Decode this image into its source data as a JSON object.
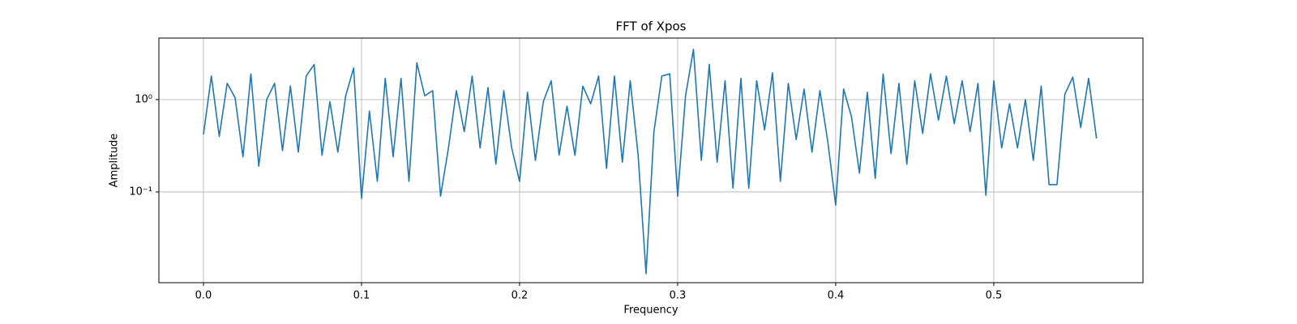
{
  "chart_data": {
    "type": "line",
    "title": "FFT of Xpos",
    "x_label": "Frequency",
    "y_label": "Amplitude",
    "color": "#1f77b4",
    "yscale": "log",
    "grid": true,
    "xlim": [
      -0.0282,
      0.5944
    ],
    "ylim": [
      0.0104,
      4.64
    ],
    "xticks": [
      {
        "value": 0,
        "label": "0.0"
      },
      0.1,
      0.2,
      0.3,
      0.4,
      0.5
    ],
    "yticks": [
      {
        "value": 0.1,
        "label": "10⁻¹"
      },
      {
        "value": 1,
        "label": "10⁰"
      }
    ],
    "x": [
      0,
      0.005,
      0.01,
      0.015,
      0.02,
      0.025,
      0.03,
      0.035,
      0.04,
      0.045,
      0.05,
      0.055,
      0.06,
      0.065,
      0.07,
      0.075,
      0.08,
      0.085,
      0.09,
      0.095,
      0.1,
      0.105,
      0.11,
      0.115,
      0.12,
      0.125,
      0.13,
      0.135,
      0.14,
      0.145,
      0.15,
      0.155,
      0.16,
      0.165,
      0.17,
      0.175,
      0.18,
      0.185,
      0.19,
      0.195,
      0.2,
      0.205,
      0.21,
      0.215,
      0.22,
      0.225,
      0.23,
      0.235,
      0.24,
      0.245,
      0.25,
      0.255,
      0.26,
      0.265,
      0.27,
      0.275,
      0.28,
      0.285,
      0.29,
      0.295,
      0.3,
      0.305,
      0.31,
      0.315,
      0.32,
      0.325,
      0.33,
      0.335,
      0.34,
      0.345,
      0.35,
      0.355,
      0.36,
      0.365,
      0.37,
      0.375,
      0.38,
      0.385,
      0.39,
      0.395,
      0.4,
      0.405,
      0.41,
      0.415,
      0.42,
      0.425,
      0.43,
      0.435,
      0.44,
      0.445,
      0.45,
      0.455,
      0.46,
      0.465,
      0.47,
      0.475,
      0.48,
      0.485,
      0.49,
      0.495,
      0.5,
      0.505,
      0.51,
      0.515,
      0.52,
      0.525,
      0.53,
      0.535,
      0.54,
      0.545,
      0.55,
      0.555,
      0.56,
      0.565
    ],
    "values": [
      0.42,
      1.8,
      0.4,
      1.5,
      1.05,
      0.24,
      1.9,
      0.19,
      1.0,
      1.5,
      0.28,
      1.4,
      0.27,
      1.8,
      2.4,
      0.25,
      0.95,
      0.27,
      1.1,
      2.2,
      0.085,
      0.75,
      0.13,
      1.7,
      0.24,
      1.7,
      0.13,
      2.5,
      1.1,
      1.25,
      0.09,
      0.3,
      1.25,
      0.45,
      1.8,
      0.3,
      1.35,
      0.2,
      1.25,
      0.3,
      0.13,
      1.2,
      0.22,
      0.95,
      1.6,
      0.25,
      0.85,
      0.25,
      1.4,
      0.9,
      1.8,
      0.18,
      1.8,
      0.21,
      1.6,
      0.25,
      0.013,
      0.45,
      1.8,
      1.9,
      0.09,
      1.1,
      3.5,
      0.22,
      2.4,
      0.21,
      1.6,
      0.11,
      1.7,
      0.11,
      1.6,
      0.47,
      1.95,
      0.13,
      1.5,
      0.37,
      1.3,
      0.27,
      1.25,
      0.35,
      0.072,
      1.3,
      0.65,
      0.16,
      1.2,
      0.14,
      1.9,
      0.26,
      1.5,
      0.2,
      1.6,
      0.43,
      1.9,
      0.6,
      1.8,
      0.55,
      1.6,
      0.45,
      1.5,
      0.092,
      1.6,
      0.3,
      0.9,
      0.3,
      1.0,
      0.22,
      1.4,
      0.12,
      0.12,
      1.15,
      1.75,
      0.5,
      1.7,
      0.38
    ]
  }
}
